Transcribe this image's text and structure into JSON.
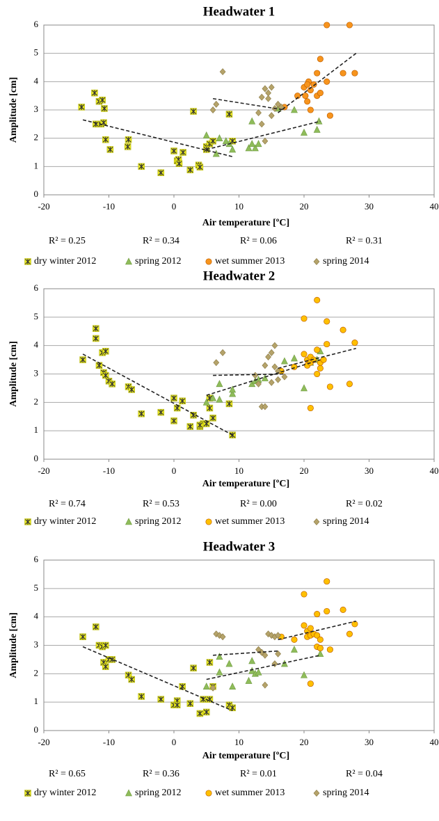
{
  "chart_data": [
    {
      "type": "scatter",
      "title": "Headwater 1",
      "x_label": "Air temperature [ºC]",
      "y_label": "Amplitude [cm]",
      "xlim": [
        -20,
        40
      ],
      "ylim": [
        0,
        6
      ],
      "xticks": [
        -20,
        -10,
        0,
        10,
        20,
        30,
        40
      ],
      "yticks": [
        0,
        1,
        2,
        3,
        4,
        5,
        6
      ],
      "grid": true,
      "r_squared_labels": [
        "R² = 0.25",
        "R² = 0.34",
        "R² = 0.06",
        "R² = 0.31"
      ],
      "series": [
        {
          "name": "dry winter 2012",
          "color": "#e8e820",
          "marker": "asterisk",
          "x": [
            -14.2,
            -12.2,
            -12,
            -11.5,
            -11.2,
            -11,
            -10.8,
            -10.7,
            -10.5,
            -9.8,
            -7,
            -7.1,
            -5,
            -2,
            0,
            0.5,
            0.7,
            0.8,
            1.4,
            2.5,
            3,
            3.8,
            4,
            5,
            5.5,
            6,
            8.5,
            9,
            5
          ],
          "values": [
            3.1,
            3.6,
            2.5,
            3.3,
            2.5,
            3.35,
            2.55,
            3.05,
            1.95,
            1.6,
            1.95,
            1.7,
            1,
            0.78,
            1.55,
            1.2,
            1.25,
            1.1,
            1.5,
            0.88,
            2.95,
            1.05,
            0.98,
            1.7,
            1.8,
            1.9,
            2.85,
            1.9,
            1.6
          ],
          "trend": {
            "x": [
              -14,
              9
            ],
            "y": [
              2.65,
              1.35
            ]
          }
        },
        {
          "name": "spring 2012",
          "color": "#8fbc5a",
          "marker": "triangle",
          "x": [
            5,
            6.5,
            7,
            8,
            8.5,
            9,
            11.5,
            12,
            12,
            12.5,
            13,
            16,
            18.5,
            20,
            22,
            22.3
          ],
          "values": [
            2.1,
            1.45,
            2,
            1.9,
            1.8,
            1.6,
            1.65,
            1.8,
            2.6,
            1.65,
            1.8,
            3.05,
            3,
            2.2,
            2.3,
            2.6
          ],
          "trend": {
            "x": [
              5,
              22.5
            ],
            "y": [
              1.6,
              2.6
            ]
          }
        },
        {
          "name": "wet summer 2013",
          "color": "#f7941d",
          "marker": "circle",
          "x": [
            19,
            20,
            20.2,
            20.5,
            20.7,
            21,
            21,
            21.5,
            22,
            22,
            22.5,
            22.5,
            23.5,
            23.5,
            24,
            26,
            27,
            27.8,
            17,
            20.5
          ],
          "values": [
            3.5,
            3.8,
            3.5,
            3.3,
            4,
            3,
            3.7,
            3.9,
            4.3,
            3.5,
            4.8,
            3.6,
            6,
            4,
            2.8,
            4.3,
            6,
            4.3,
            3.1,
            3.9
          ],
          "trend": {
            "x": [
              16,
              28
            ],
            "y": [
              2.9,
              5
            ]
          }
        },
        {
          "name": "spring 2014",
          "color": "#b5a36a",
          "marker": "diamond",
          "x": [
            6,
            6.5,
            7.5,
            13,
            13.5,
            13.5,
            14,
            14,
            14.5,
            14.5,
            15,
            15,
            15.5,
            16,
            16.5
          ],
          "values": [
            3,
            3.2,
            4.35,
            2.9,
            3.45,
            2.5,
            3.75,
            1.9,
            3.6,
            3.4,
            3.8,
            2.8,
            3.05,
            3.2,
            3.1
          ],
          "trend": {
            "x": [
              6,
              17
            ],
            "y": [
              3.4,
              3
            ]
          }
        }
      ]
    },
    {
      "type": "scatter",
      "title": "Headwater 2",
      "x_label": "Air temperature [ºC]",
      "y_label": "Amplitude  [cm]",
      "xlim": [
        -20,
        40
      ],
      "ylim": [
        0,
        6
      ],
      "xticks": [
        -20,
        -10,
        0,
        10,
        20,
        30,
        40
      ],
      "yticks": [
        0,
        1,
        2,
        3,
        4,
        5,
        6
      ],
      "grid": true,
      "r_squared_labels": [
        "R² = 0.74",
        "R² = 0.53",
        "R² = 0.00",
        "R² = 0.02"
      ],
      "series": [
        {
          "name": "dry winter 2012",
          "color": "#e8e820",
          "marker": "asterisk",
          "x": [
            -14,
            -12,
            -12,
            -11.5,
            -11,
            -10.8,
            -10.5,
            -10.5,
            -10,
            -9.5,
            -7,
            -6.5,
            -5,
            -2,
            0,
            0,
            0.5,
            1.3,
            2.5,
            3,
            4,
            4.5,
            5,
            5.5,
            5.5,
            6,
            8.5,
            9,
            4
          ],
          "values": [
            3.5,
            4.6,
            4.25,
            3.3,
            3.75,
            3.05,
            3.8,
            2.95,
            2.75,
            2.65,
            2.55,
            2.45,
            1.6,
            1.65,
            2.15,
            1.35,
            1.8,
            2.05,
            1.15,
            1.55,
            1.15,
            1.25,
            1.25,
            1.8,
            2.15,
            1.45,
            1.95,
            0.85,
            1.2
          ],
          "trend": {
            "x": [
              -14,
              9
            ],
            "y": [
              3.7,
              0.85
            ]
          }
        },
        {
          "name": "spring 2012",
          "color": "#8fbc5a",
          "marker": "triangle",
          "x": [
            5,
            6,
            7,
            7,
            9,
            9,
            12,
            12.5,
            13,
            14,
            17,
            18.5,
            20,
            22,
            22.5,
            21
          ],
          "values": [
            2,
            2.15,
            2.1,
            2.65,
            2.3,
            2.45,
            2.65,
            2.75,
            2.8,
            2.85,
            3.45,
            3.55,
            2.5,
            3.5,
            3.8,
            3.4
          ],
          "trend": {
            "x": [
              5,
              22.5
            ],
            "y": [
              2.25,
              3.5
            ]
          }
        },
        {
          "name": "wet summer 2013",
          "color": "#ffc000",
          "marker": "circle",
          "x": [
            16.5,
            18.5,
            20,
            20,
            20.5,
            20.5,
            21,
            21,
            21,
            21.5,
            22,
            22,
            22,
            22.5,
            22.5,
            23,
            23.5,
            23.5,
            24,
            26,
            27,
            27.8
          ],
          "values": [
            3.1,
            3.25,
            4.95,
            3.7,
            3.5,
            3.3,
            3.6,
            3.4,
            1.8,
            3.5,
            5.6,
            3.85,
            3,
            3.2,
            3.4,
            3.5,
            4.85,
            4.05,
            2.55,
            4.55,
            2.65,
            4.1
          ],
          "trend": {
            "x": [
              16,
              28
            ],
            "y": [
              3.2,
              3.9
            ]
          }
        },
        {
          "name": "spring 2014",
          "color": "#b5a36a",
          "marker": "diamond",
          "x": [
            6.5,
            7.5,
            12.5,
            13,
            13.5,
            14,
            14,
            14.5,
            15,
            15,
            15.5,
            15.5,
            16,
            16,
            17
          ],
          "values": [
            3.4,
            3.75,
            2.95,
            2.65,
            1.85,
            3.3,
            1.85,
            3.6,
            3.75,
            2.7,
            4,
            3.25,
            2.8,
            3.1,
            2.9
          ],
          "trend": {
            "x": [
              6,
              17
            ],
            "y": [
              2.95,
              3
            ]
          }
        }
      ]
    },
    {
      "type": "scatter",
      "title": "Headwater 3",
      "x_label": "Air temperature [ºC]",
      "y_label": "Amplitude  [cm]",
      "xlim": [
        -20,
        40
      ],
      "ylim": [
        0,
        6
      ],
      "xticks": [
        -20,
        -10,
        0,
        10,
        20,
        30,
        40
      ],
      "yticks": [
        0,
        1,
        2,
        3,
        4,
        5,
        6
      ],
      "grid": true,
      "r_squared_labels": [
        "R² = 0.65",
        "R² = 0.36",
        "R² = 0.01",
        "R² = 0.04"
      ],
      "series": [
        {
          "name": "dry winter 2012",
          "color": "#e8e820",
          "marker": "asterisk",
          "x": [
            -14,
            -12,
            -11.5,
            -11,
            -10.8,
            -10.5,
            -10.5,
            -10,
            -9.5,
            -7,
            -6.5,
            -5,
            -2,
            0,
            0.5,
            0.5,
            1.3,
            2.5,
            3,
            4,
            4.5,
            5,
            5.5,
            6,
            5.5,
            8.5,
            9
          ],
          "values": [
            3.3,
            3.65,
            3,
            2.95,
            2.4,
            2.25,
            3,
            2.5,
            2.5,
            1.95,
            1.8,
            1.2,
            1.1,
            0.9,
            1.05,
            0.9,
            1.55,
            0.95,
            2.2,
            0.6,
            1.1,
            0.65,
            1.1,
            1.55,
            2.4,
            0.9,
            0.8
          ],
          "trend": {
            "x": [
              -14,
              9
            ],
            "y": [
              2.95,
              0.7
            ]
          }
        },
        {
          "name": "spring 2012",
          "color": "#8fbc5a",
          "marker": "triangle",
          "x": [
            5,
            7,
            7,
            8.5,
            9,
            12,
            12,
            12.5,
            13,
            17,
            18.5,
            20,
            22.5,
            11.5
          ],
          "values": [
            1.55,
            2.6,
            2.05,
            2.35,
            1.55,
            2.45,
            2.1,
            2,
            2.05,
            2.35,
            2.85,
            1.95,
            2.7,
            1.75
          ],
          "trend": {
            "x": [
              5,
              22.5
            ],
            "y": [
              1.8,
              2.65
            ]
          }
        },
        {
          "name": "wet summer 2013",
          "color": "#ffc000",
          "marker": "circle",
          "x": [
            16.5,
            18.5,
            20,
            20,
            20.5,
            20.5,
            21,
            21,
            21,
            21.5,
            22,
            22,
            22,
            22.5,
            23.5,
            23.5,
            24,
            26,
            27,
            27.8,
            22.5
          ],
          "values": [
            3.3,
            3.2,
            4.8,
            3.7,
            3.3,
            3.5,
            3.35,
            3.6,
            1.65,
            3.4,
            4.1,
            3.35,
            2.95,
            2.9,
            5.25,
            4.2,
            2.85,
            4.25,
            3.4,
            3.75,
            3.2
          ],
          "trend": {
            "x": [
              16,
              28
            ],
            "y": [
              3.2,
              3.85
            ]
          }
        },
        {
          "name": "spring 2014",
          "color": "#b5a36a",
          "marker": "diamond",
          "x": [
            6.5,
            7,
            7.5,
            13,
            13.5,
            14,
            14,
            14.5,
            15,
            15.5,
            16,
            16,
            15.5,
            6
          ],
          "values": [
            3.4,
            3.35,
            3.3,
            2.85,
            2.75,
            1.6,
            2.65,
            3.4,
            3.35,
            3.3,
            2.7,
            3.35,
            2.35,
            1.5
          ],
          "trend": {
            "x": [
              6,
              16
            ],
            "y": [
              2.65,
              2.8
            ]
          }
        }
      ]
    }
  ]
}
